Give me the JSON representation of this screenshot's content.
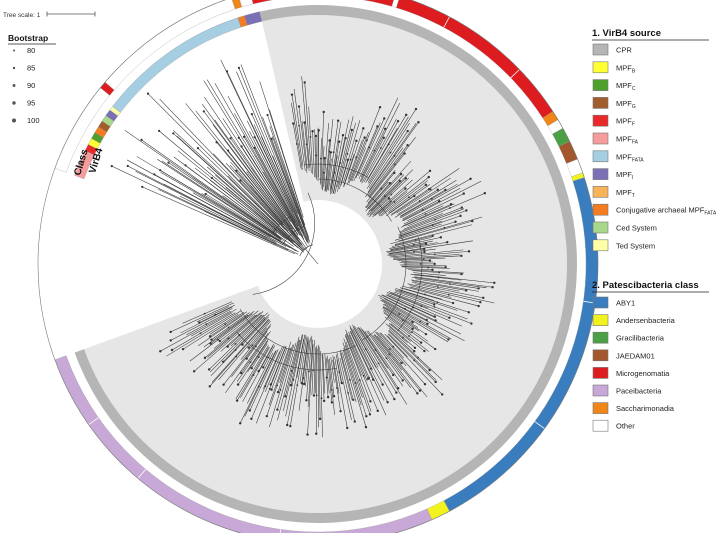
{
  "scale": {
    "label": "Tree scale: 1"
  },
  "bootstrap": {
    "title": "Bootstrap",
    "levels": [
      {
        "label": "80",
        "size": 0.3
      },
      {
        "label": "85",
        "size": 0.45
      },
      {
        "label": "90",
        "size": 0.6
      },
      {
        "label": "95",
        "size": 0.8
      },
      {
        "label": "100",
        "size": 1.0
      }
    ]
  },
  "ring_labels": {
    "inner": "VirB4",
    "outer": "Class"
  },
  "legend1": {
    "title": "1. VirB4 source",
    "items": [
      {
        "label": "CPR",
        "sub": "",
        "color": "#b5b5b5"
      },
      {
        "label": "MPF",
        "sub": "B",
        "color": "#ffff33"
      },
      {
        "label": "MPF",
        "sub": "C",
        "color": "#4da02c"
      },
      {
        "label": "MPF",
        "sub": "G",
        "color": "#a25d2c"
      },
      {
        "label": "MPF",
        "sub": "F",
        "color": "#e8282a"
      },
      {
        "label": "MPF",
        "sub": "FA",
        "color": "#f59c9c"
      },
      {
        "label": "MPF",
        "sub": "FATA",
        "color": "#a6cee3"
      },
      {
        "label": "MPF",
        "sub": "I",
        "color": "#7b70b6"
      },
      {
        "label": "MPF",
        "sub": "T",
        "color": "#f8b35a"
      },
      {
        "label": "Conjugative archaeal MPF",
        "sub": "FATA",
        "color": "#f47c20"
      },
      {
        "label": "Ced System",
        "sub": "",
        "color": "#a7d88c"
      },
      {
        "label": "Ted System",
        "sub": "",
        "color": "#ffffa8"
      }
    ]
  },
  "legend2": {
    "title": "2. Patescibacteria class",
    "items": [
      {
        "label": "ABY1",
        "color": "#3a7dbf"
      },
      {
        "label": "Andersenbacteria",
        "color": "#f2f21e"
      },
      {
        "label": "Gracilibacteria",
        "color": "#4ba046"
      },
      {
        "label": "JAEDAM01",
        "color": "#a2572f"
      },
      {
        "label": "Microgenomatia",
        "color": "#dd1c1f"
      },
      {
        "label": "Paceibacteria",
        "color": "#c7a8d6"
      },
      {
        "label": "Saccharimonadia",
        "color": "#f08518"
      },
      {
        "label": "Other",
        "color": "#ffffff"
      }
    ]
  },
  "colors": {
    "cpr_gray": "#b5b5b5",
    "wedge_gray": "#e6e6e6",
    "outer_ring_border": "#777777"
  }
}
